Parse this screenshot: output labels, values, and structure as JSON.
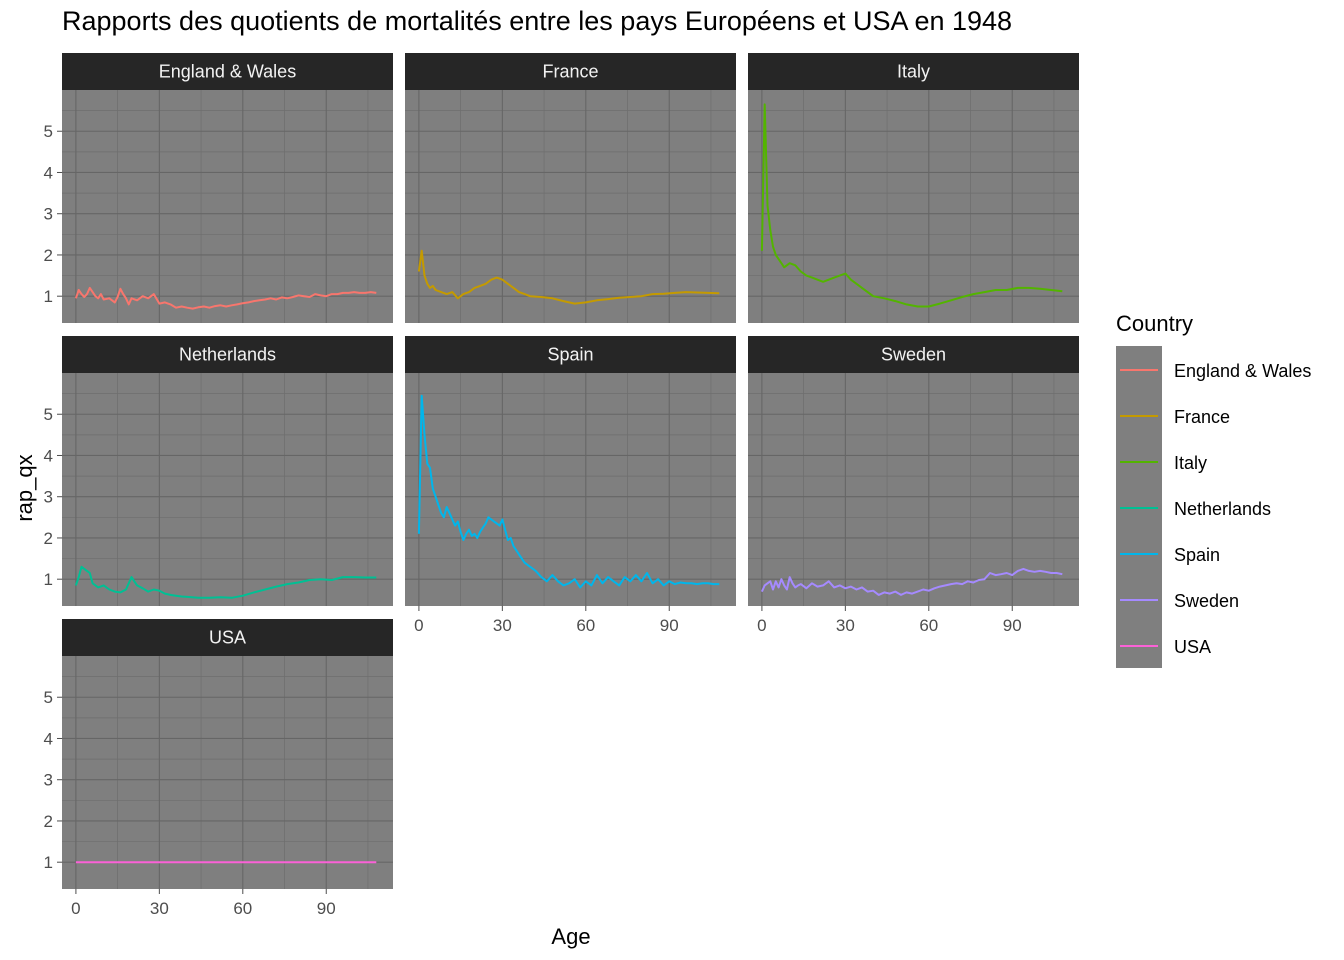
{
  "chart_data": {
    "type": "line",
    "title": "Rapports des quotients de mortalités entre les pays Européens et USA en 1948",
    "xlabel": "Age",
    "ylabel": "rap_qx",
    "xlim": [
      -5,
      114
    ],
    "ylim": [
      0.35,
      6.0
    ],
    "x_ticks": [
      0,
      30,
      60,
      90
    ],
    "y_ticks": [
      1,
      2,
      3,
      4,
      5
    ],
    "grid": true,
    "legend": {
      "title": "Country",
      "placement": "right"
    },
    "series": [
      {
        "name": "England & Wales",
        "color": "#F8766D",
        "x": [
          0,
          1,
          2,
          3,
          4,
          5,
          6,
          7,
          8,
          9,
          10,
          12,
          14,
          15,
          16,
          17,
          18,
          19,
          20,
          22,
          24,
          26,
          28,
          30,
          32,
          34,
          36,
          38,
          40,
          42,
          44,
          46,
          48,
          50,
          52,
          54,
          56,
          58,
          60,
          62,
          64,
          66,
          68,
          70,
          72,
          74,
          76,
          78,
          80,
          82,
          84,
          86,
          88,
          90,
          92,
          94,
          96,
          98,
          100,
          102,
          104,
          106,
          108
        ],
        "y": [
          0.95,
          1.15,
          1.05,
          0.98,
          1.05,
          1.2,
          1.1,
          1.0,
          0.95,
          1.05,
          0.92,
          0.95,
          0.85,
          0.98,
          1.18,
          1.05,
          0.95,
          0.8,
          0.95,
          0.9,
          1.0,
          0.95,
          1.05,
          0.82,
          0.85,
          0.8,
          0.72,
          0.75,
          0.72,
          0.7,
          0.73,
          0.75,
          0.72,
          0.76,
          0.78,
          0.75,
          0.78,
          0.8,
          0.83,
          0.85,
          0.88,
          0.9,
          0.92,
          0.95,
          0.92,
          0.97,
          0.95,
          0.98,
          1.02,
          1.0,
          0.98,
          1.05,
          1.02,
          1.0,
          1.05,
          1.05,
          1.08,
          1.08,
          1.1,
          1.08,
          1.08,
          1.1,
          1.08
        ]
      },
      {
        "name": "France",
        "color": "#C49A00",
        "x": [
          0,
          1,
          2,
          3,
          4,
          5,
          6,
          8,
          10,
          12,
          14,
          16,
          18,
          20,
          22,
          24,
          26,
          28,
          30,
          32,
          34,
          36,
          38,
          40,
          44,
          48,
          52,
          56,
          60,
          64,
          68,
          72,
          76,
          80,
          84,
          88,
          92,
          96,
          100,
          104,
          108
        ],
        "y": [
          1.6,
          2.1,
          1.5,
          1.3,
          1.2,
          1.25,
          1.15,
          1.1,
          1.05,
          1.1,
          0.95,
          1.05,
          1.1,
          1.2,
          1.25,
          1.3,
          1.4,
          1.45,
          1.4,
          1.3,
          1.2,
          1.1,
          1.05,
          1.0,
          0.98,
          0.95,
          0.88,
          0.82,
          0.85,
          0.9,
          0.93,
          0.96,
          0.98,
          1.0,
          1.05,
          1.06,
          1.08,
          1.1,
          1.09,
          1.08,
          1.07
        ]
      },
      {
        "name": "Italy",
        "color": "#53B400",
        "x": [
          0,
          1,
          2,
          3,
          4,
          5,
          6,
          8,
          10,
          12,
          14,
          16,
          18,
          20,
          22,
          24,
          26,
          28,
          30,
          32,
          34,
          36,
          38,
          40,
          44,
          48,
          52,
          56,
          60,
          64,
          68,
          72,
          76,
          80,
          84,
          88,
          92,
          96,
          100,
          104,
          108
        ],
        "y": [
          2.1,
          5.65,
          3.2,
          2.6,
          2.2,
          2.0,
          1.9,
          1.7,
          1.8,
          1.75,
          1.6,
          1.5,
          1.45,
          1.4,
          1.35,
          1.4,
          1.45,
          1.5,
          1.55,
          1.4,
          1.3,
          1.2,
          1.1,
          1.0,
          0.95,
          0.88,
          0.8,
          0.75,
          0.75,
          0.82,
          0.9,
          0.98,
          1.05,
          1.1,
          1.15,
          1.15,
          1.2,
          1.2,
          1.18,
          1.15,
          1.12
        ]
      },
      {
        "name": "Netherlands",
        "color": "#00C094",
        "x": [
          0,
          1,
          2,
          3,
          4,
          5,
          6,
          8,
          10,
          12,
          14,
          16,
          18,
          20,
          22,
          24,
          26,
          28,
          30,
          32,
          34,
          36,
          38,
          40,
          44,
          48,
          52,
          56,
          60,
          64,
          68,
          72,
          76,
          80,
          84,
          88,
          92,
          96,
          100,
          104,
          108
        ],
        "y": [
          0.85,
          1.05,
          1.3,
          1.25,
          1.2,
          1.15,
          0.9,
          0.8,
          0.85,
          0.75,
          0.7,
          0.68,
          0.75,
          1.05,
          0.85,
          0.78,
          0.7,
          0.75,
          0.72,
          0.65,
          0.62,
          0.6,
          0.58,
          0.57,
          0.55,
          0.55,
          0.56,
          0.55,
          0.6,
          0.68,
          0.75,
          0.82,
          0.88,
          0.92,
          0.98,
          1.0,
          0.98,
          1.05,
          1.05,
          1.04,
          1.04
        ]
      },
      {
        "name": "Spain",
        "color": "#00B6EB",
        "x": [
          0,
          1,
          2,
          3,
          4,
          5,
          6,
          7,
          8,
          9,
          10,
          11,
          12,
          13,
          14,
          15,
          16,
          17,
          18,
          19,
          20,
          21,
          22,
          23,
          24,
          25,
          26,
          27,
          28,
          29,
          30,
          31,
          32,
          33,
          34,
          35,
          36,
          38,
          40,
          42,
          44,
          46,
          48,
          50,
          52,
          54,
          56,
          58,
          60,
          62,
          64,
          66,
          68,
          70,
          72,
          74,
          76,
          78,
          80,
          82,
          84,
          86,
          88,
          90,
          92,
          94,
          96,
          98,
          100,
          102,
          104,
          106,
          108
        ],
        "y": [
          2.1,
          5.45,
          4.5,
          3.8,
          3.7,
          3.2,
          3.0,
          2.8,
          2.6,
          2.5,
          2.75,
          2.6,
          2.45,
          2.3,
          2.4,
          2.15,
          1.95,
          2.1,
          2.2,
          2.05,
          2.1,
          2.0,
          2.15,
          2.25,
          2.35,
          2.5,
          2.45,
          2.4,
          2.35,
          2.3,
          2.45,
          2.2,
          1.95,
          2.0,
          1.8,
          1.7,
          1.6,
          1.4,
          1.3,
          1.2,
          1.05,
          0.95,
          1.1,
          0.95,
          0.85,
          0.9,
          1.0,
          0.8,
          0.95,
          0.85,
          1.1,
          0.9,
          1.05,
          0.95,
          0.85,
          1.05,
          0.95,
          1.1,
          0.95,
          1.15,
          0.9,
          1.0,
          0.85,
          0.95,
          0.88,
          0.92,
          0.9,
          0.9,
          0.88,
          0.9,
          0.9,
          0.88,
          0.88
        ]
      },
      {
        "name": "Sweden",
        "color": "#A58AFF",
        "x": [
          0,
          1,
          2,
          3,
          4,
          5,
          6,
          7,
          8,
          9,
          10,
          11,
          12,
          13,
          14,
          16,
          18,
          20,
          22,
          24,
          26,
          28,
          30,
          32,
          34,
          36,
          38,
          40,
          42,
          44,
          46,
          48,
          50,
          52,
          54,
          56,
          58,
          60,
          62,
          64,
          66,
          68,
          70,
          72,
          74,
          76,
          78,
          80,
          82,
          84,
          86,
          88,
          90,
          92,
          94,
          96,
          98,
          100,
          102,
          104,
          106,
          108
        ],
        "y": [
          0.7,
          0.85,
          0.9,
          0.95,
          0.75,
          0.95,
          0.8,
          1.0,
          0.85,
          0.75,
          1.05,
          0.9,
          0.8,
          0.85,
          0.88,
          0.78,
          0.9,
          0.82,
          0.85,
          0.95,
          0.8,
          0.85,
          0.78,
          0.82,
          0.75,
          0.8,
          0.7,
          0.72,
          0.62,
          0.68,
          0.65,
          0.7,
          0.62,
          0.68,
          0.65,
          0.7,
          0.75,
          0.72,
          0.78,
          0.82,
          0.85,
          0.88,
          0.9,
          0.88,
          0.95,
          0.92,
          0.98,
          1.0,
          1.15,
          1.1,
          1.12,
          1.15,
          1.1,
          1.2,
          1.25,
          1.2,
          1.18,
          1.2,
          1.18,
          1.15,
          1.15,
          1.12
        ]
      },
      {
        "name": "USA",
        "color": "#FB61D7",
        "x": [
          0,
          108
        ],
        "y": [
          1.0,
          1.0
        ]
      }
    ]
  }
}
